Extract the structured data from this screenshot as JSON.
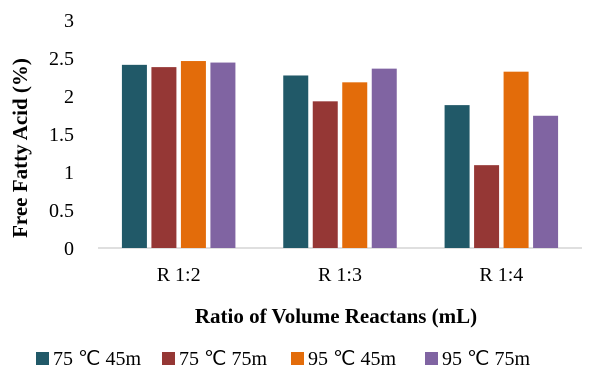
{
  "chart_data": {
    "type": "bar",
    "title": "",
    "xlabel": "Ratio of Volume Reactans (mL)",
    "ylabel": "Free Fatty Acid (%)",
    "ylim": [
      0,
      3
    ],
    "yticks": [
      "0",
      "0.5",
      "1",
      "1.5",
      "2",
      "2.5",
      "3"
    ],
    "grid": false,
    "legend_position": "bottom",
    "categories": [
      "R 1:2",
      "R 1:3",
      "R 1:4"
    ],
    "series": [
      {
        "name": "75 ℃  45m",
        "color": "#215968",
        "values": [
          2.41,
          2.27,
          1.88
        ]
      },
      {
        "name": "75 ℃  75m",
        "color": "#953735",
        "values": [
          2.38,
          1.93,
          1.09
        ]
      },
      {
        "name": "95 ℃  45m",
        "color": "#E36C0A",
        "values": [
          2.46,
          2.18,
          2.32
        ]
      },
      {
        "name": "95 ℃  75m",
        "color": "#8064A2",
        "values": [
          2.44,
          2.36,
          1.74
        ]
      }
    ]
  }
}
